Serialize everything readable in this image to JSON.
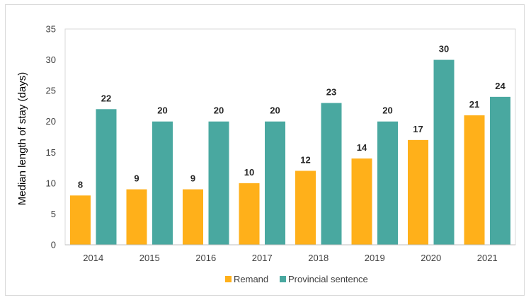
{
  "chart_data": {
    "type": "bar",
    "title": "",
    "xlabel": "",
    "ylabel": "Median length of stay (days)",
    "ylim": [
      0,
      35
    ],
    "yticks": [
      0,
      5,
      10,
      15,
      20,
      25,
      30,
      35
    ],
    "grid": false,
    "legend_position": "bottom",
    "categories": [
      "2014",
      "2015",
      "2016",
      "2017",
      "2018",
      "2019",
      "2020",
      "2021"
    ],
    "series": [
      {
        "name": "Remand",
        "color": "#FFB01A",
        "values": [
          8,
          9,
          9,
          10,
          12,
          14,
          17,
          21
        ]
      },
      {
        "name": "Provincial sentence",
        "color": "#49A8A0",
        "values": [
          22,
          20,
          20,
          20,
          23,
          20,
          30,
          24
        ]
      }
    ]
  }
}
